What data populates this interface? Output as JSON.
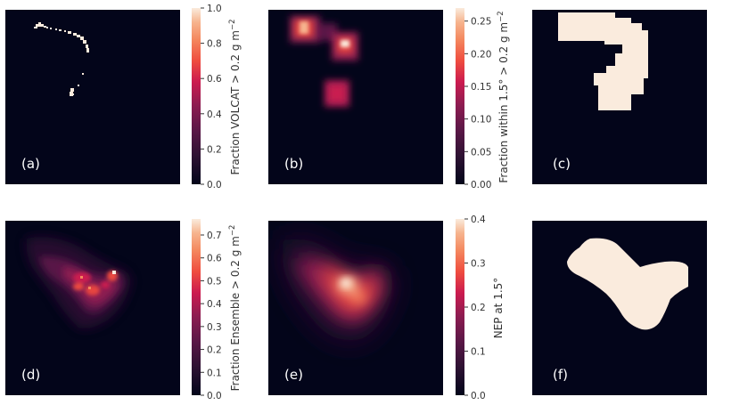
{
  "chart_data": [
    {
      "type": "heatmap",
      "panel_label": "(a)",
      "colorbar": {
        "label_main": "Fraction VOLCAT > 0.2 g m",
        "label_sup": "−2",
        "min": 0.0,
        "max": 1.0,
        "ticks": [
          0.0,
          0.2,
          0.4,
          0.6,
          0.8,
          1.0
        ],
        "tick_labels": [
          "0.0",
          "0.2",
          "0.4",
          "0.6",
          "0.8",
          "1.0"
        ]
      },
      "pattern": "sparse observed ash pixels in a hook shape near the top of the domain"
    },
    {
      "type": "heatmap",
      "panel_label": "(b)",
      "colorbar": {
        "label_main": "Fraction within 1.5° > 0.2 g m",
        "label_sup": "−2",
        "min": 0.0,
        "max": 0.27,
        "ticks": [
          0.0,
          0.05,
          0.1,
          0.15,
          0.2,
          0.25
        ],
        "tick_labels": [
          "0.00",
          "0.05",
          "0.10",
          "0.15",
          "0.20",
          "0.25"
        ]
      },
      "pattern": "smoothed neighbourhood fraction of panel (a)"
    },
    {
      "type": "heatmap",
      "panel_label": "(c)",
      "colorbar": null,
      "pattern": "binary mask of the hook-shaped region"
    },
    {
      "type": "heatmap",
      "panel_label": "(d)",
      "colorbar": {
        "label_main": "Fraction Ensemble > 0.2 g m",
        "label_sup": "−2",
        "min": 0.0,
        "max": 0.77,
        "ticks": [
          0.0,
          0.1,
          0.2,
          0.3,
          0.4,
          0.5,
          0.6,
          0.7
        ],
        "tick_labels": [
          "0.0",
          "0.1",
          "0.2",
          "0.3",
          "0.4",
          "0.5",
          "0.6",
          "0.7"
        ]
      },
      "pattern": "ensemble fraction plume extending diagonally from upper-left to centre"
    },
    {
      "type": "heatmap",
      "panel_label": "(e)",
      "colorbar": {
        "label_main": "NEP at 1.5°",
        "label_sup": "",
        "min": 0.0,
        "max": 0.4,
        "ticks": [
          0.0,
          0.1,
          0.2,
          0.3,
          0.4
        ],
        "tick_labels": [
          "0.0",
          "0.1",
          "0.2",
          "0.3",
          "0.4"
        ]
      },
      "pattern": "smoothed neighbourhood ensemble probability peaking near the centre"
    },
    {
      "type": "heatmap",
      "panel_label": "(f)",
      "colorbar": null,
      "pattern": "binary mask of the V-shaped region"
    }
  ],
  "colors": {
    "background": "#ffffff",
    "panel_bg": "#03051a",
    "mask_fill": "#faebdd",
    "text_on_panel": "#ffffff",
    "colormap": "rocket"
  }
}
